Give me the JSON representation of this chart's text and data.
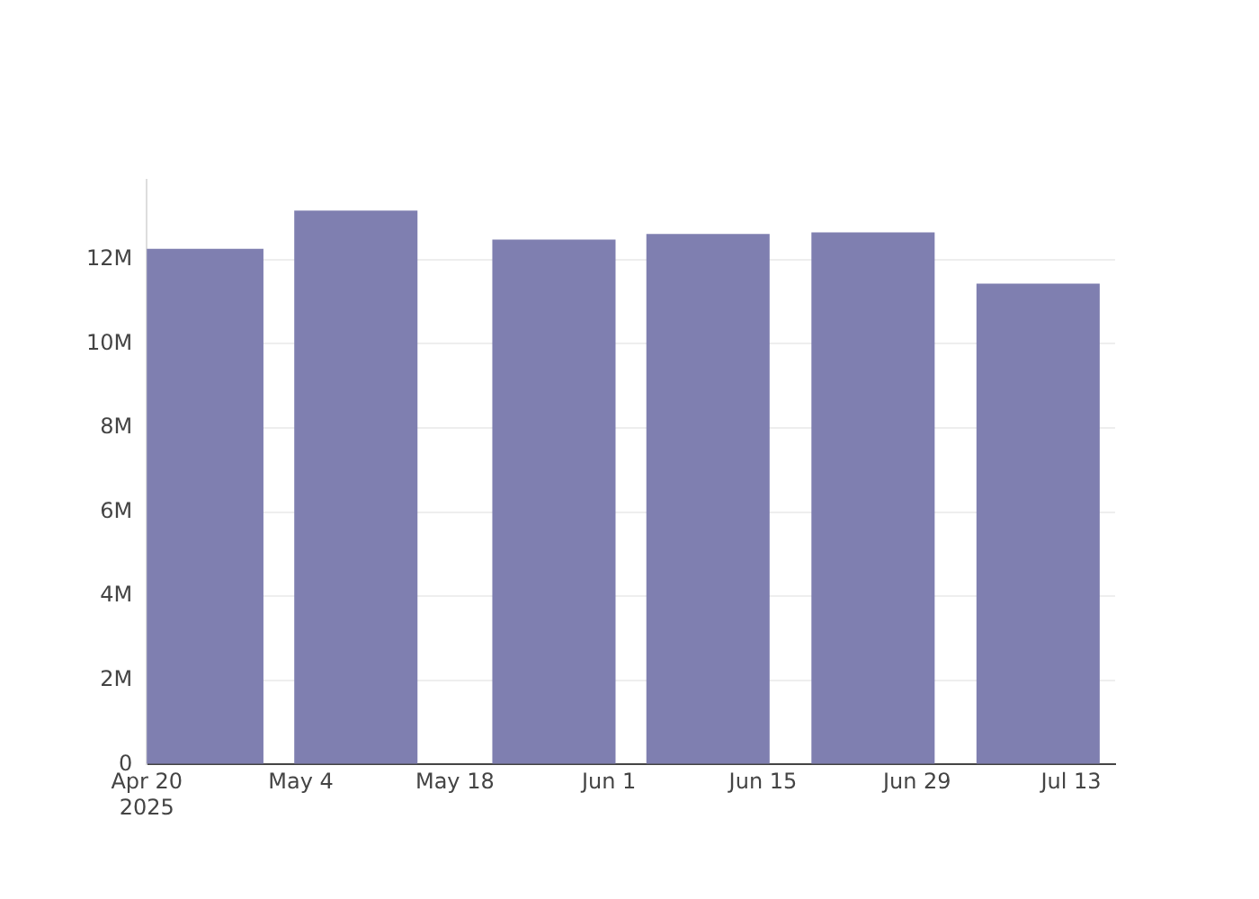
{
  "chart_data": {
    "type": "bar",
    "x": [
      "2025-04-25",
      "2025-05-09",
      "2025-05-27",
      "2025-06-10",
      "2025-06-25",
      "2025-07-10"
    ],
    "values": [
      12260000,
      13170000,
      12480000,
      12610000,
      12650000,
      11430000
    ],
    "color": "#7f7fb0",
    "xlim": [
      "2025-04-20",
      "2025-07-17"
    ],
    "xticks": [
      {
        "value": "2025-04-20",
        "label": "Apr 20\n2025"
      },
      {
        "value": "2025-05-04",
        "label": "May 4"
      },
      {
        "value": "2025-05-18",
        "label": "May 18"
      },
      {
        "value": "2025-06-01",
        "label": "Jun 1"
      },
      {
        "value": "2025-06-15",
        "label": "Jun 15"
      },
      {
        "value": "2025-06-29",
        "label": "Jun 29"
      },
      {
        "value": "2025-07-13",
        "label": "Jul 13"
      }
    ],
    "ylim": [
      0,
      13900000
    ],
    "yticks": [
      {
        "value": 0,
        "label": "0"
      },
      {
        "value": 2000000,
        "label": "2M"
      },
      {
        "value": 4000000,
        "label": "4M"
      },
      {
        "value": 6000000,
        "label": "6M"
      },
      {
        "value": 8000000,
        "label": "8M"
      },
      {
        "value": 10000000,
        "label": "10M"
      },
      {
        "value": 12000000,
        "label": "12M"
      }
    ],
    "grid": "y"
  }
}
